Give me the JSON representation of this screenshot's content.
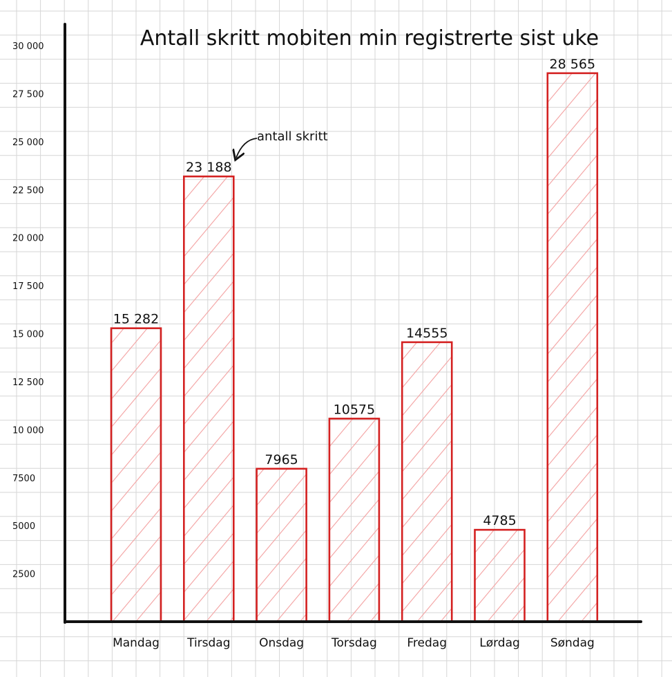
{
  "chart_data": {
    "type": "bar",
    "title": "Antall skritt mobiten min registrerte sist uke",
    "xlabel": "",
    "ylabel": "",
    "categories": [
      "Mandag",
      "Tirsdag",
      "Onsdag",
      "Torsdag",
      "Fredag",
      "Lørdag",
      "Søndag"
    ],
    "values": [
      15282,
      23188,
      7965,
      10575,
      14555,
      4785,
      28565
    ],
    "data_labels": [
      "15 282",
      "23 188",
      "7965",
      "10575",
      "14555",
      "4785",
      "28 565"
    ],
    "y_ticks": [
      2500,
      5000,
      7500,
      10000,
      12500,
      15000,
      17500,
      20000,
      22500,
      25000,
      27500,
      30000
    ],
    "y_tick_labels": [
      "2500",
      "5000",
      "7500",
      "10 000",
      "12 500",
      "15 000",
      "17 500",
      "20 000",
      "22 500",
      "25 000",
      "27 500",
      "30 000"
    ],
    "ylim": [
      0,
      30000
    ],
    "grid": true,
    "annotation": {
      "text": "antall skritt",
      "target": "Tirsdag"
    },
    "colors": {
      "bar_outline": "#d42121",
      "bar_hatch": "#f3a0a0",
      "axis": "#111111",
      "grid": "#d6d6d6"
    }
  }
}
